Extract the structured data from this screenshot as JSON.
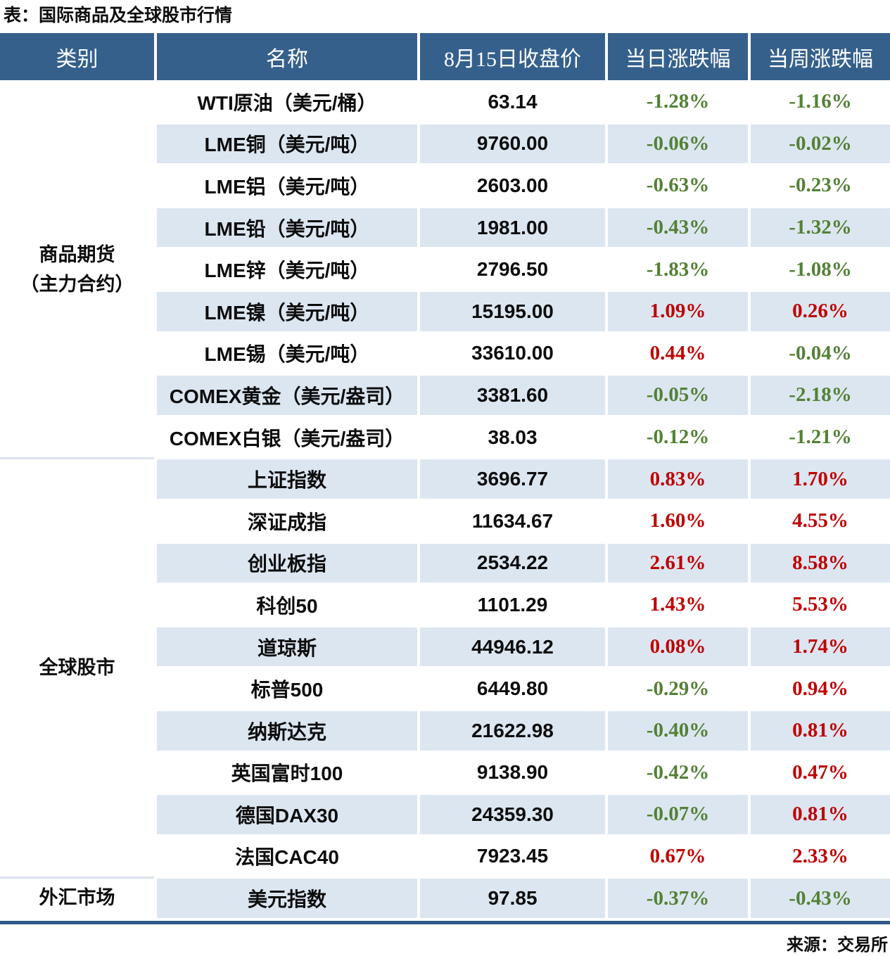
{
  "title": "表：国际商品及全球股市行情",
  "source": "来源：交易所",
  "colors": {
    "header_bg": "#35608C",
    "row_stripe": "#DCE6F1",
    "positive_red": "#C00000",
    "negative_green": "#538135",
    "category_divider": "#D9E2EF",
    "table_bottom_border": "#2E5A88"
  },
  "chart_data": {
    "type": "table",
    "title": "表：国际商品及全球股市行情",
    "source_note": "来源：交易所",
    "columns": [
      "类别",
      "名称",
      "8月15日收盘价",
      "当日涨跌幅",
      "当周涨跌幅"
    ],
    "sections": [
      {
        "category": "商品期货\n（主力合约）",
        "rows": [
          {
            "name": "WTI原油（美元/桶）",
            "close": "63.14",
            "daily": "-1.28%",
            "weekly": "-1.16%"
          },
          {
            "name": "LME铜（美元/吨）",
            "close": "9760.00",
            "daily": "-0.06%",
            "weekly": "-0.02%"
          },
          {
            "name": "LME铝（美元/吨）",
            "close": "2603.00",
            "daily": "-0.63%",
            "weekly": "-0.23%"
          },
          {
            "name": "LME铅（美元/吨）",
            "close": "1981.00",
            "daily": "-0.43%",
            "weekly": "-1.32%"
          },
          {
            "name": "LME锌（美元/吨）",
            "close": "2796.50",
            "daily": "-1.83%",
            "weekly": "-1.08%"
          },
          {
            "name": "LME镍（美元/吨）",
            "close": "15195.00",
            "daily": "1.09%",
            "weekly": "0.26%"
          },
          {
            "name": "LME锡（美元/吨）",
            "close": "33610.00",
            "daily": "0.44%",
            "weekly": "-0.04%"
          },
          {
            "name": "COMEX黄金（美元/盎司）",
            "close": "3381.60",
            "daily": "-0.05%",
            "weekly": "-2.18%"
          },
          {
            "name": "COMEX白银（美元/盎司）",
            "close": "38.03",
            "daily": "-0.12%",
            "weekly": "-1.21%"
          }
        ]
      },
      {
        "category": "全球股市",
        "rows": [
          {
            "name": "上证指数",
            "close": "3696.77",
            "daily": "0.83%",
            "weekly": "1.70%"
          },
          {
            "name": "深证成指",
            "close": "11634.67",
            "daily": "1.60%",
            "weekly": "4.55%"
          },
          {
            "name": "创业板指",
            "close": "2534.22",
            "daily": "2.61%",
            "weekly": "8.58%"
          },
          {
            "name": "科创50",
            "close": "1101.29",
            "daily": "1.43%",
            "weekly": "5.53%"
          },
          {
            "name": "道琼斯",
            "close": "44946.12",
            "daily": "0.08%",
            "weekly": "1.74%"
          },
          {
            "name": "标普500",
            "close": "6449.80",
            "daily": "-0.29%",
            "weekly": "0.94%"
          },
          {
            "name": "纳斯达克",
            "close": "21622.98",
            "daily": "-0.40%",
            "weekly": "0.81%"
          },
          {
            "name": "英国富时100",
            "close": "9138.90",
            "daily": "-0.42%",
            "weekly": "0.47%"
          },
          {
            "name": "德国DAX30",
            "close": "24359.30",
            "daily": "-0.07%",
            "weekly": "0.81%"
          },
          {
            "name": "法国CAC40",
            "close": "7923.45",
            "daily": "0.67%",
            "weekly": "2.33%"
          }
        ]
      },
      {
        "category": "外汇市场",
        "rows": [
          {
            "name": "美元指数",
            "close": "97.85",
            "daily": "-0.37%",
            "weekly": "-0.43%"
          }
        ]
      }
    ]
  }
}
